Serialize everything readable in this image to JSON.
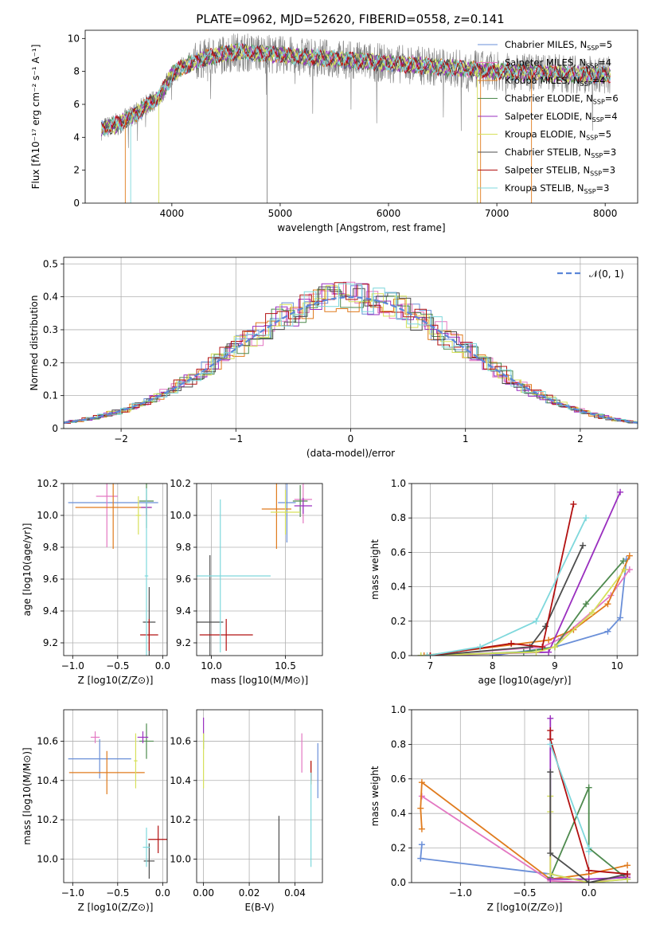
{
  "title": "PLATE=0962, MJD=52620, FIBERID=0558, z=0.141",
  "colors": {
    "Chabrier MILES": "#6a8fd8",
    "Salpeter MILES": "#e377c2",
    "Kroupa MILES": "#e07b1d",
    "Chabrier ELODIE": "#4e8a4e",
    "Salpeter ELODIE": "#9a2fbf",
    "Kroupa ELODIE": "#d6e05a",
    "Chabrier STELIB": "#4d4d4d",
    "Salpeter STELIB": "#b21010",
    "Kroupa STELIB": "#7fd8dc"
  },
  "chart_data": [
    {
      "id": "spectrum",
      "type": "line",
      "xlabel": "wavelength [Angstrom, rest frame]",
      "ylabel": "Flux [fλ10⁻¹⁷ erg cm⁻² s⁻¹ A⁻¹]",
      "xlim": [
        3200,
        8300
      ],
      "ylim": [
        0,
        10.5
      ],
      "xticks": [
        4000,
        5000,
        6000,
        7000,
        8000
      ],
      "yticks": [
        0,
        2,
        4,
        6,
        8,
        10
      ],
      "grid": false,
      "legend_position": "top-right",
      "legend": [
        {
          "name": "Chabrier MILES",
          "n": "5"
        },
        {
          "name": "Salpeter MILES",
          "n": "4"
        },
        {
          "name": "Kroupa MILES",
          "n": "4"
        },
        {
          "name": "Chabrier ELODIE",
          "n": "6"
        },
        {
          "name": "Salpeter ELODIE",
          "n": "4"
        },
        {
          "name": "Kroupa ELODIE",
          "n": "5"
        },
        {
          "name": "Chabrier STELIB",
          "n": "3"
        },
        {
          "name": "Salpeter STELIB",
          "n": "3"
        },
        {
          "name": "Kroupa STELIB",
          "n": "3"
        }
      ],
      "data_range": [
        3350,
        8050
      ],
      "continuum": {
        "x": [
          3350,
          3500,
          3700,
          3900,
          4000,
          4100,
          4300,
          4600,
          5000,
          5400,
          5800,
          6200,
          6600,
          7000,
          7400,
          7800,
          8050
        ],
        "y": [
          4.5,
          4.8,
          5.6,
          6.6,
          7.8,
          8.3,
          8.8,
          9.2,
          9.0,
          8.8,
          8.6,
          8.4,
          8.2,
          8.0,
          7.9,
          7.8,
          7.8
        ]
      }
    },
    {
      "id": "residuals",
      "type": "line",
      "xlabel": "(data-model)/error",
      "ylabel": "Normed distribution",
      "xlim": [
        -2.5,
        2.5
      ],
      "ylim": [
        0,
        0.52
      ],
      "xticks": [
        -2,
        -1,
        0,
        1,
        2
      ],
      "yticks": [
        0.0,
        0.1,
        0.2,
        0.3,
        0.4,
        0.5
      ],
      "grid": true,
      "legend_label": "𝒩(0, 1)",
      "legend_position": "top-right",
      "gaussian": {
        "mu": 0,
        "sigma": 1
      }
    },
    {
      "id": "age_vs_Z",
      "type": "scatter",
      "xlabel": "Z [log10(Z/Z⊙)]",
      "ylabel": "age  [log10(age/yr)]",
      "xlim": [
        -1.1,
        0.05
      ],
      "ylim": [
        9.12,
        10.2
      ],
      "xticks": [
        -1.0,
        -0.5,
        0.0
      ],
      "yticks": [
        9.2,
        9.4,
        9.6,
        9.8,
        10.0,
        10.2
      ],
      "grid": true,
      "points": [
        {
          "s": "Chabrier MILES",
          "x": -0.55,
          "xerr": 0.5,
          "y": 10.08,
          "yerr": 0
        },
        {
          "s": "Salpeter MILES",
          "x": -0.62,
          "xerr": 0.12,
          "y": 10.12,
          "yerr": 0.32
        },
        {
          "s": "Kroupa MILES",
          "x": -0.55,
          "xerr": 0.42,
          "y": 10.05,
          "yerr": 0.26
        },
        {
          "s": "Chabrier ELODIE",
          "x": -0.18,
          "xerr": 0.08,
          "y": 10.09,
          "yerr": 0.17
        },
        {
          "s": "Salpeter ELODIE",
          "x": -0.18,
          "xerr": 0.06,
          "y": 10.05,
          "yerr": 0.05
        },
        {
          "s": "Kroupa ELODIE",
          "x": -0.27,
          "xerr": 0.03,
          "y": 10.0,
          "yerr": 0.12
        },
        {
          "s": "Chabrier STELIB",
          "x": -0.15,
          "xerr": 0.07,
          "y": 9.33,
          "yerr": 0.22
        },
        {
          "s": "Salpeter STELIB",
          "x": -0.15,
          "xerr": 0.1,
          "y": 9.25,
          "yerr": 0.1
        },
        {
          "s": "Kroupa STELIB",
          "x": -0.18,
          "xerr": 0.02,
          "y": 9.62,
          "yerr": 0.55
        }
      ]
    },
    {
      "id": "age_vs_mass",
      "type": "scatter",
      "xlabel": "mass [log10(M/M⊙)]",
      "ylabel": "",
      "xlim": [
        9.9,
        10.75
      ],
      "ylim": [
        9.12,
        10.2
      ],
      "xticks": [
        10.0,
        10.5
      ],
      "yticks": [
        9.2,
        9.4,
        9.6,
        9.8,
        10.0,
        10.2
      ],
      "grid": true,
      "points": [
        {
          "s": "Chabrier MILES",
          "x": 10.51,
          "xerr": 0.06,
          "y": 10.08,
          "yerr": 0.25
        },
        {
          "s": "Salpeter MILES",
          "x": 10.62,
          "xerr": 0.06,
          "y": 10.1,
          "yerr": 0.15
        },
        {
          "s": "Kroupa MILES",
          "x": 10.44,
          "xerr": 0.1,
          "y": 10.04,
          "yerr": 0.25
        },
        {
          "s": "Chabrier ELODIE",
          "x": 10.6,
          "xerr": 0.05,
          "y": 10.09,
          "yerr": 0.1
        },
        {
          "s": "Salpeter ELODIE",
          "x": 10.62,
          "xerr": 0.06,
          "y": 10.06,
          "yerr": 0.05
        },
        {
          "s": "Kroupa ELODIE",
          "x": 10.5,
          "xerr": 0.1,
          "y": 10.02,
          "yerr": 0.14
        },
        {
          "s": "Chabrier STELIB",
          "x": 9.99,
          "xerr": 0.09,
          "y": 9.33,
          "yerr": 0.42
        },
        {
          "s": "Salpeter STELIB",
          "x": 10.1,
          "xerr": 0.18,
          "y": 9.25,
          "yerr": 0.1
        },
        {
          "s": "Kroupa STELIB",
          "x": 10.06,
          "xerr": 0.34,
          "y": 9.62,
          "yerr": 0.48
        }
      ]
    },
    {
      "id": "weight_vs_age",
      "type": "line",
      "xlabel": "age  [log10(age/yr)]",
      "ylabel": "mass weight",
      "xlim": [
        6.7,
        10.33
      ],
      "ylim": [
        0,
        1.0
      ],
      "xticks": [
        7,
        8,
        9,
        10
      ],
      "yticks": [
        0.0,
        0.2,
        0.4,
        0.6,
        0.8,
        1.0
      ],
      "grid": true,
      "series": [
        {
          "s": "Chabrier MILES",
          "x": [
            8.0,
            9.0,
            9.85,
            10.05,
            10.15
          ],
          "y": [
            0.0,
            0.05,
            0.14,
            0.22,
            0.56
          ]
        },
        {
          "s": "Salpeter MILES",
          "x": [
            6.9,
            8.8,
            9.1,
            9.9,
            10.2
          ],
          "y": [
            0.0,
            0.05,
            0.1,
            0.35,
            0.5
          ]
        },
        {
          "s": "Kroupa MILES",
          "x": [
            6.9,
            8.9,
            9.3,
            9.85,
            10.2
          ],
          "y": [
            0.0,
            0.09,
            0.15,
            0.3,
            0.58
          ]
        },
        {
          "s": "Chabrier ELODIE",
          "x": [
            6.85,
            8.5,
            9.0,
            9.5,
            10.1
          ],
          "y": [
            0.0,
            0.02,
            0.05,
            0.3,
            0.55
          ]
        },
        {
          "s": "Salpeter ELODIE",
          "x": [
            7.0,
            8.9,
            10.05
          ],
          "y": [
            0.0,
            0.02,
            0.95
          ]
        },
        {
          "s": "Kroupa ELODIE",
          "x": [
            6.85,
            8.7,
            9.0,
            9.6,
            10.12
          ],
          "y": [
            0.0,
            0.02,
            0.05,
            0.25,
            0.5
          ]
        },
        {
          "s": "Chabrier STELIB",
          "x": [
            7.0,
            8.6,
            8.85,
            9.45
          ],
          "y": [
            0.0,
            0.05,
            0.17,
            0.64
          ]
        },
        {
          "s": "Salpeter STELIB",
          "x": [
            7.0,
            8.3,
            8.8,
            9.3
          ],
          "y": [
            0.0,
            0.07,
            0.05,
            0.88
          ]
        },
        {
          "s": "Kroupa STELIB",
          "x": [
            6.95,
            7.8,
            8.7,
            9.5
          ],
          "y": [
            0.0,
            0.05,
            0.2,
            0.8
          ]
        }
      ]
    },
    {
      "id": "mass_vs_Z",
      "type": "scatter",
      "xlabel": "Z [log10(Z/Z⊙)]",
      "ylabel": "mass [log10(M/M⊙)]",
      "xlim": [
        -1.1,
        0.05
      ],
      "ylim": [
        9.88,
        10.76
      ],
      "xticks": [
        -1.0,
        -0.5,
        0.0
      ],
      "yticks": [
        10.0,
        10.2,
        10.4,
        10.6
      ],
      "grid": true,
      "points": [
        {
          "s": "Chabrier MILES",
          "x": -0.7,
          "xerr": 0.35,
          "y": 10.51,
          "yerr": 0.1
        },
        {
          "s": "Salpeter MILES",
          "x": -0.75,
          "xerr": 0.05,
          "y": 10.62,
          "yerr": 0.03
        },
        {
          "s": "Kroupa MILES",
          "x": -0.62,
          "xerr": 0.42,
          "y": 10.44,
          "yerr": 0.11
        },
        {
          "s": "Chabrier ELODIE",
          "x": -0.18,
          "xerr": 0.08,
          "y": 10.6,
          "yerr": 0.09
        },
        {
          "s": "Salpeter ELODIE",
          "x": -0.22,
          "xerr": 0.06,
          "y": 10.62,
          "yerr": 0.03
        },
        {
          "s": "Kroupa ELODIE",
          "x": -0.3,
          "xerr": 0.02,
          "y": 10.5,
          "yerr": 0.14
        },
        {
          "s": "Chabrier STELIB",
          "x": -0.15,
          "xerr": 0.06,
          "y": 9.99,
          "yerr": 0.09
        },
        {
          "s": "Salpeter STELIB",
          "x": -0.05,
          "xerr": 0.11,
          "y": 10.1,
          "yerr": 0.07
        },
        {
          "s": "Kroupa STELIB",
          "x": -0.18,
          "xerr": 0.04,
          "y": 10.06,
          "yerr": 0.1
        }
      ]
    },
    {
      "id": "mass_vs_ebv",
      "type": "scatter",
      "xlabel": "E(B-V)",
      "ylabel": "",
      "xlim": [
        -0.003,
        0.052
      ],
      "ylim": [
        9.88,
        10.76
      ],
      "xticks": [
        0.0,
        0.02,
        0.04
      ],
      "yticks": [
        10.0,
        10.2,
        10.4,
        10.6
      ],
      "grid": true,
      "points": [
        {
          "s": "Chabrier MILES",
          "x": 0.05,
          "xerr": 0,
          "y": 10.45,
          "yerr": 0.14
        },
        {
          "s": "Salpeter MILES",
          "x": 0.043,
          "xerr": 0,
          "y": 10.54,
          "yerr": 0.1
        },
        {
          "s": "Kroupa MILES",
          "x": 0.047,
          "xerr": 0,
          "y": 10.44,
          "yerr": 0.06
        },
        {
          "s": "Chabrier ELODIE",
          "x": 0.0,
          "xerr": 0,
          "y": 10.6,
          "yerr": 0.04
        },
        {
          "s": "Salpeter ELODIE",
          "x": 0.0,
          "xerr": 0,
          "y": 10.68,
          "yerr": 0.04
        },
        {
          "s": "Kroupa ELODIE",
          "x": 0.0,
          "xerr": 0,
          "y": 10.5,
          "yerr": 0.14
        },
        {
          "s": "Chabrier STELIB",
          "x": 0.033,
          "xerr": 0,
          "y": 10.05,
          "yerr": 0.17
        },
        {
          "s": "Salpeter STELIB",
          "x": 0.047,
          "xerr": 0,
          "y": 10.45,
          "yerr": 0.05
        },
        {
          "s": "Kroupa STELIB",
          "x": 0.047,
          "xerr": 0,
          "y": 10.2,
          "yerr": 0.24
        }
      ]
    },
    {
      "id": "weight_vs_Z",
      "type": "line",
      "xlabel": "Z [log10(Z/Z⊙)]",
      "ylabel": "mass weight",
      "xlim": [
        -1.38,
        0.38
      ],
      "ylim": [
        0,
        1.0
      ],
      "xticks": [
        -1.0,
        -0.5,
        0.0
      ],
      "yticks": [
        0.0,
        0.2,
        0.4,
        0.6,
        0.8,
        1.0
      ],
      "grid": true,
      "series": [
        {
          "s": "Chabrier MILES",
          "x": [
            -1.3,
            -1.31,
            -0.3,
            0.0,
            0.3
          ],
          "y": [
            0.22,
            0.14,
            0.05,
            0.0,
            0.02
          ]
        },
        {
          "s": "Salpeter MILES",
          "x": [
            -1.3,
            -0.3,
            0.0,
            0.3
          ],
          "y": [
            0.5,
            0.01,
            0.0,
            0.04
          ]
        },
        {
          "s": "Kroupa MILES",
          "x": [
            -1.3,
            -1.31,
            -1.3,
            -0.3,
            0.0,
            0.3
          ],
          "y": [
            0.31,
            0.43,
            0.58,
            0.02,
            0.05,
            0.1
          ]
        },
        {
          "s": "Chabrier ELODIE",
          "x": [
            -0.3,
            -0.3,
            0.0,
            0.0,
            0.3
          ],
          "y": [
            0.02,
            0.03,
            0.55,
            0.2,
            0.02
          ]
        },
        {
          "s": "Salpeter ELODIE",
          "x": [
            -0.3,
            -0.3,
            0.0,
            0.3
          ],
          "y": [
            0.95,
            0.02,
            0.02,
            0.03
          ]
        },
        {
          "s": "Kroupa ELODIE",
          "x": [
            -0.3,
            -0.3,
            -0.3,
            0.0,
            0.3
          ],
          "y": [
            0.5,
            0.41,
            0.05,
            0.0,
            0.02
          ]
        },
        {
          "s": "Chabrier STELIB",
          "x": [
            -0.3,
            -0.3,
            0.0,
            0.3
          ],
          "y": [
            0.64,
            0.17,
            0.0,
            0.05
          ]
        },
        {
          "s": "Salpeter STELIB",
          "x": [
            -0.3,
            -0.3,
            0.0,
            0.3
          ],
          "y": [
            0.88,
            0.83,
            0.07,
            0.05
          ]
        },
        {
          "s": "Kroupa STELIB",
          "x": [
            -0.3,
            0.0,
            0.0
          ],
          "y": [
            0.8,
            0.2,
            0.18
          ]
        }
      ]
    }
  ]
}
